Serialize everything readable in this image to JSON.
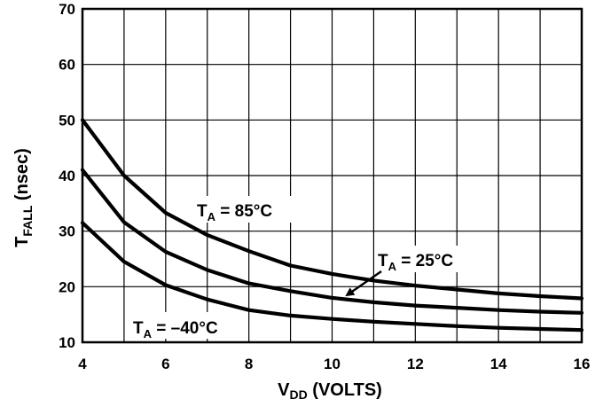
{
  "chart_data": {
    "type": "line",
    "xlabel_main": "V",
    "xlabel_sub": "DD",
    "xlabel_rest": " (VOLTS)",
    "ylabel_main": "T",
    "ylabel_sub": "FALL",
    "ylabel_rest": " (nsec)",
    "xlim": [
      4,
      16
    ],
    "ylim": [
      10,
      70
    ],
    "x_ticks": [
      4,
      6,
      8,
      10,
      12,
      14,
      16
    ],
    "y_ticks": [
      10,
      20,
      30,
      40,
      50,
      60,
      70
    ],
    "x_grid": [
      4,
      5,
      6,
      7,
      8,
      9,
      10,
      11,
      12,
      13,
      14,
      15,
      16
    ],
    "y_grid": [
      10,
      20,
      30,
      40,
      50,
      60,
      70
    ],
    "grid": true,
    "series": [
      {
        "label_main": "T",
        "label_sub": "A",
        "label_rest": " = 85°C",
        "x": [
          4,
          5,
          6,
          7,
          8,
          9,
          10,
          11,
          12,
          13,
          14,
          15,
          16
        ],
        "y": [
          50,
          40,
          33.3,
          29.3,
          26.4,
          23.8,
          22.3,
          21.1,
          20.2,
          19.5,
          18.8,
          18.3,
          17.9
        ]
      },
      {
        "label_main": "T",
        "label_sub": "A",
        "label_rest": " = 25°C",
        "x": [
          4,
          5,
          6,
          7,
          8,
          9,
          10,
          11,
          12,
          13,
          14,
          15,
          16
        ],
        "y": [
          41,
          31.6,
          26.3,
          23,
          20.6,
          19.2,
          18,
          17.2,
          16.6,
          16.2,
          15.8,
          15.5,
          15.3
        ]
      },
      {
        "label_main": "T",
        "label_sub": "A",
        "label_rest": " = –40°C",
        "x": [
          4,
          5,
          6,
          7,
          8,
          9,
          10,
          11,
          12,
          13,
          14,
          15,
          16
        ],
        "y": [
          31.5,
          24.5,
          20.3,
          17.7,
          15.8,
          14.8,
          14.2,
          13.7,
          13.3,
          12.9,
          12.6,
          12.4,
          12.2
        ]
      }
    ]
  }
}
